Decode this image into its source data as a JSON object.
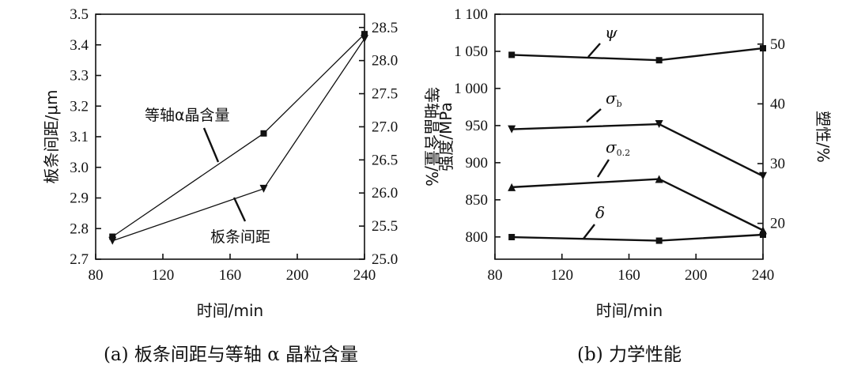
{
  "captions": {
    "a": "(a) 板条间距与等轴 α 晶粒含量",
    "b": "(b) 力学性能"
  },
  "chart_data": [
    {
      "type": "line",
      "xlabel": "时间/min",
      "ylabel_left": "板条间距/μm",
      "ylabel_right": "等轴晶含量/%",
      "x_ticks": [
        "80",
        "120",
        "160",
        "200",
        "240"
      ],
      "xlim": [
        80,
        240
      ],
      "y_left_ticks": [
        "2.7",
        "2.8",
        "2.9",
        "3.0",
        "3.1",
        "3.2",
        "3.3",
        "3.4",
        "3.5"
      ],
      "ylim_left": [
        2.7,
        3.5
      ],
      "y_right_ticks": [
        "25.0",
        "25.5",
        "26.0",
        "26.5",
        "27.0",
        "27.5",
        "28.0",
        "28.5"
      ],
      "ylim_right": [
        25.0,
        28.7
      ],
      "grid": false,
      "series": [
        {
          "name": "等轴α晶含量",
          "axis": "right",
          "marker": "square",
          "x": [
            90,
            180,
            240
          ],
          "values": [
            25.34,
            26.9,
            28.4
          ]
        },
        {
          "name": "板条间距",
          "axis": "left",
          "marker": "triangle-down",
          "x": [
            90,
            180,
            240
          ],
          "values": [
            2.76,
            2.93,
            3.42
          ]
        }
      ]
    },
    {
      "type": "line",
      "xlabel": "时间/min",
      "ylabel_left": "强度/MPa",
      "ylabel_right": "塑性/%",
      "x_ticks": [
        "80",
        "120",
        "160",
        "200",
        "240"
      ],
      "xlim": [
        80,
        240
      ],
      "y_left_ticks": [
        "800",
        "850",
        "900",
        "950",
        "1 000",
        "1 050",
        "1 100"
      ],
      "ylim_left": [
        770,
        1100
      ],
      "y_right_ticks": [
        "20",
        "30",
        "40",
        "50"
      ],
      "ylim_right": [
        14,
        55
      ],
      "grid": false,
      "series": [
        {
          "name": "ψ",
          "axis": "right",
          "marker": "square",
          "x": [
            90,
            178,
            240
          ],
          "values": [
            48.2,
            47.3,
            49.3
          ]
        },
        {
          "name": "σb",
          "axis": "left",
          "marker": "triangle-down",
          "x": [
            90,
            178,
            240
          ],
          "values": [
            945,
            952,
            882
          ]
        },
        {
          "name": "σ0.2",
          "axis": "left",
          "marker": "triangle-up",
          "x": [
            90,
            178,
            240
          ],
          "values": [
            867,
            878,
            809
          ]
        },
        {
          "name": "δ",
          "axis": "right",
          "marker": "square",
          "x": [
            90,
            178,
            240
          ],
          "values": [
            17.7,
            17.1,
            18.1
          ]
        }
      ]
    }
  ]
}
